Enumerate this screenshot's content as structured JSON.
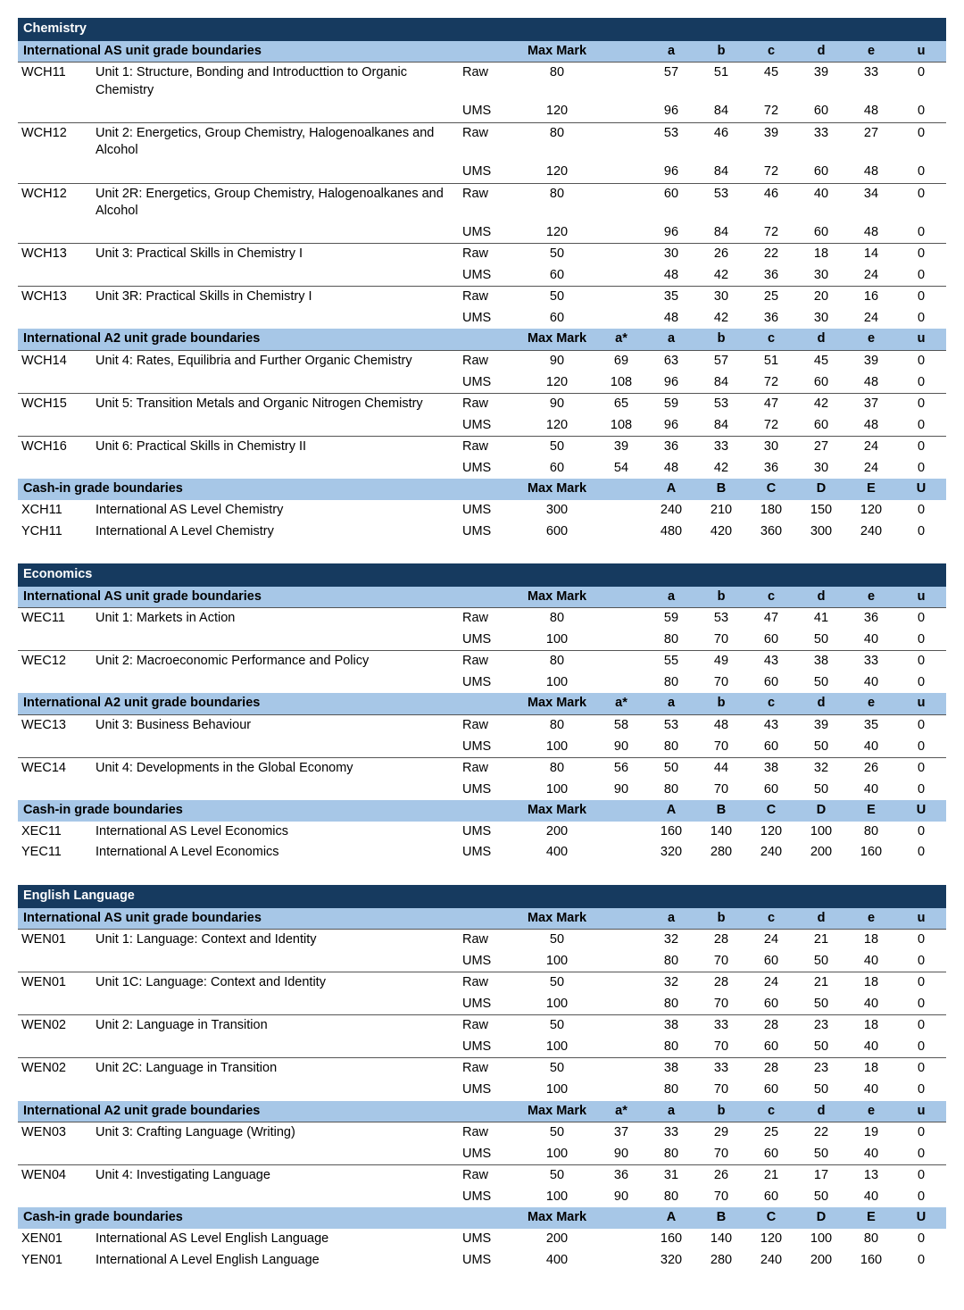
{
  "colors": {
    "subject_bg": "#163a5f",
    "subject_fg": "#ffffff",
    "section_bg": "#a7c7e7",
    "border": "#555555",
    "page_bg": "#ffffff"
  },
  "labels": {
    "max_mark": "Max Mark",
    "row_raw": "Raw",
    "row_ums": "UMS"
  },
  "grade_sets": {
    "as": [
      "",
      "a",
      "b",
      "c",
      "d",
      "e",
      "u"
    ],
    "a2": [
      "a*",
      "a",
      "b",
      "c",
      "d",
      "e",
      "u"
    ],
    "cashin": [
      "",
      "A",
      "B",
      "C",
      "D",
      "E",
      "U"
    ]
  },
  "subjects": [
    {
      "name": "Chemistry",
      "sections": [
        {
          "title": "International AS unit grade boundaries",
          "grade_set": "as",
          "units": [
            {
              "code": "WCH11",
              "title": "Unit 1: Structure, Bonding and Introducttion to Organic Chemistry",
              "rows": [
                {
                  "type": "Raw",
                  "max": 80,
                  "g": [
                    "",
                    57,
                    51,
                    45,
                    39,
                    33,
                    0
                  ]
                },
                {
                  "type": "UMS",
                  "max": 120,
                  "g": [
                    "",
                    96,
                    84,
                    72,
                    60,
                    48,
                    0
                  ]
                }
              ]
            },
            {
              "code": "WCH12",
              "title": "Unit 2: Energetics, Group Chemistry, Halogenoalkanes and Alcohol",
              "rows": [
                {
                  "type": "Raw",
                  "max": 80,
                  "g": [
                    "",
                    53,
                    46,
                    39,
                    33,
                    27,
                    0
                  ]
                },
                {
                  "type": "UMS",
                  "max": 120,
                  "g": [
                    "",
                    96,
                    84,
                    72,
                    60,
                    48,
                    0
                  ]
                }
              ]
            },
            {
              "code": "WCH12",
              "title": "Unit 2R: Energetics, Group Chemistry, Halogenoalkanes and Alcohol",
              "rows": [
                {
                  "type": "Raw",
                  "max": 80,
                  "g": [
                    "",
                    60,
                    53,
                    46,
                    40,
                    34,
                    0
                  ]
                },
                {
                  "type": "UMS",
                  "max": 120,
                  "g": [
                    "",
                    96,
                    84,
                    72,
                    60,
                    48,
                    0
                  ]
                }
              ]
            },
            {
              "code": "WCH13",
              "title": "Unit 3: Practical Skills in Chemistry I",
              "rows": [
                {
                  "type": "Raw",
                  "max": 50,
                  "g": [
                    "",
                    30,
                    26,
                    22,
                    18,
                    14,
                    0
                  ]
                },
                {
                  "type": "UMS",
                  "max": 60,
                  "g": [
                    "",
                    48,
                    42,
                    36,
                    30,
                    24,
                    0
                  ]
                }
              ]
            },
            {
              "code": "WCH13",
              "title": "Unit 3R: Practical Skills in Chemistry I",
              "rows": [
                {
                  "type": "Raw",
                  "max": 50,
                  "g": [
                    "",
                    35,
                    30,
                    25,
                    20,
                    16,
                    0
                  ]
                },
                {
                  "type": "UMS",
                  "max": 60,
                  "g": [
                    "",
                    48,
                    42,
                    36,
                    30,
                    24,
                    0
                  ]
                }
              ]
            }
          ]
        },
        {
          "title": "International A2 unit grade boundaries",
          "grade_set": "a2",
          "units": [
            {
              "code": "WCH14",
              "title": "Unit 4: Rates, Equilibria and Further Organic Chemistry",
              "rows": [
                {
                  "type": "Raw",
                  "max": 90,
                  "g": [
                    69,
                    63,
                    57,
                    51,
                    45,
                    39,
                    0
                  ]
                },
                {
                  "type": "UMS",
                  "max": 120,
                  "g": [
                    108,
                    96,
                    84,
                    72,
                    60,
                    48,
                    0
                  ]
                }
              ]
            },
            {
              "code": "WCH15",
              "title": "Unit 5: Transition Metals and Organic Nitrogen Chemistry",
              "rows": [
                {
                  "type": "Raw",
                  "max": 90,
                  "g": [
                    65,
                    59,
                    53,
                    47,
                    42,
                    37,
                    0
                  ]
                },
                {
                  "type": "UMS",
                  "max": 120,
                  "g": [
                    108,
                    96,
                    84,
                    72,
                    60,
                    48,
                    0
                  ]
                }
              ]
            },
            {
              "code": "WCH16",
              "title": "Unit 6: Practical Skills in Chemistry II",
              "rows": [
                {
                  "type": "Raw",
                  "max": 50,
                  "g": [
                    39,
                    36,
                    33,
                    30,
                    27,
                    24,
                    0
                  ]
                },
                {
                  "type": "UMS",
                  "max": 60,
                  "g": [
                    54,
                    48,
                    42,
                    36,
                    30,
                    24,
                    0
                  ]
                }
              ]
            }
          ]
        },
        {
          "title": "Cash-in grade boundaries",
          "grade_set": "cashin",
          "units": [
            {
              "code": "XCH11",
              "title": "International AS Level Chemistry",
              "notop": true,
              "rows": [
                {
                  "type": "UMS",
                  "max": 300,
                  "g": [
                    "",
                    240,
                    210,
                    180,
                    150,
                    120,
                    0
                  ]
                }
              ]
            },
            {
              "code": "YCH11",
              "title": "International A Level Chemistry",
              "notop": true,
              "rows": [
                {
                  "type": "UMS",
                  "max": 600,
                  "g": [
                    "",
                    480,
                    420,
                    360,
                    300,
                    240,
                    0
                  ]
                }
              ]
            }
          ]
        }
      ]
    },
    {
      "name": "Economics",
      "sections": [
        {
          "title": "International AS unit grade boundaries",
          "grade_set": "as",
          "units": [
            {
              "code": "WEC11",
              "title": "Unit 1: Markets in Action",
              "rows": [
                {
                  "type": "Raw",
                  "max": 80,
                  "g": [
                    "",
                    59,
                    53,
                    47,
                    41,
                    36,
                    0
                  ]
                },
                {
                  "type": "UMS",
                  "max": 100,
                  "g": [
                    "",
                    80,
                    70,
                    60,
                    50,
                    40,
                    0
                  ]
                }
              ]
            },
            {
              "code": "WEC12",
              "title": "Unit 2: Macroeconomic Performance and Policy",
              "rows": [
                {
                  "type": "Raw",
                  "max": 80,
                  "g": [
                    "",
                    55,
                    49,
                    43,
                    38,
                    33,
                    0
                  ]
                },
                {
                  "type": "UMS",
                  "max": 100,
                  "g": [
                    "",
                    80,
                    70,
                    60,
                    50,
                    40,
                    0
                  ]
                }
              ]
            }
          ]
        },
        {
          "title": "International A2 unit grade boundaries",
          "grade_set": "a2",
          "units": [
            {
              "code": "WEC13",
              "title": "Unit 3: Business Behaviour",
              "rows": [
                {
                  "type": "Raw",
                  "max": 80,
                  "g": [
                    58,
                    53,
                    48,
                    43,
                    39,
                    35,
                    0
                  ]
                },
                {
                  "type": "UMS",
                  "max": 100,
                  "g": [
                    90,
                    80,
                    70,
                    60,
                    50,
                    40,
                    0
                  ]
                }
              ]
            },
            {
              "code": "WEC14",
              "title": "Unit 4: Developments in the Global Economy",
              "rows": [
                {
                  "type": "Raw",
                  "max": 80,
                  "g": [
                    56,
                    50,
                    44,
                    38,
                    32,
                    26,
                    0
                  ]
                },
                {
                  "type": "UMS",
                  "max": 100,
                  "g": [
                    90,
                    80,
                    70,
                    60,
                    50,
                    40,
                    0
                  ]
                }
              ]
            }
          ]
        },
        {
          "title": "Cash-in grade boundaries",
          "grade_set": "cashin",
          "units": [
            {
              "code": "XEC11",
              "title": "International AS Level Economics",
              "notop": true,
              "rows": [
                {
                  "type": "UMS",
                  "max": 200,
                  "g": [
                    "",
                    160,
                    140,
                    120,
                    100,
                    80,
                    0
                  ]
                }
              ]
            },
            {
              "code": "YEC11",
              "title": "International A Level Economics",
              "notop": true,
              "rows": [
                {
                  "type": "UMS",
                  "max": 400,
                  "g": [
                    "",
                    320,
                    280,
                    240,
                    200,
                    160,
                    0
                  ]
                }
              ]
            }
          ]
        }
      ]
    },
    {
      "name": "English Language",
      "sections": [
        {
          "title": "International AS unit grade boundaries",
          "grade_set": "as",
          "units": [
            {
              "code": "WEN01",
              "title": "Unit 1: Language: Context and Identity",
              "rows": [
                {
                  "type": "Raw",
                  "max": 50,
                  "g": [
                    "",
                    32,
                    28,
                    24,
                    21,
                    18,
                    0
                  ]
                },
                {
                  "type": "UMS",
                  "max": 100,
                  "g": [
                    "",
                    80,
                    70,
                    60,
                    50,
                    40,
                    0
                  ]
                }
              ]
            },
            {
              "code": "WEN01",
              "title": "Unit 1C: Language: Context and Identity",
              "rows": [
                {
                  "type": "Raw",
                  "max": 50,
                  "g": [
                    "",
                    32,
                    28,
                    24,
                    21,
                    18,
                    0
                  ]
                },
                {
                  "type": "UMS",
                  "max": 100,
                  "g": [
                    "",
                    80,
                    70,
                    60,
                    50,
                    40,
                    0
                  ]
                }
              ]
            },
            {
              "code": "WEN02",
              "title": "Unit 2: Language in Transition",
              "rows": [
                {
                  "type": "Raw",
                  "max": 50,
                  "g": [
                    "",
                    38,
                    33,
                    28,
                    23,
                    18,
                    0
                  ]
                },
                {
                  "type": "UMS",
                  "max": 100,
                  "g": [
                    "",
                    80,
                    70,
                    60,
                    50,
                    40,
                    0
                  ]
                }
              ]
            },
            {
              "code": "WEN02",
              "title": "Unit 2C: Language in Transition",
              "rows": [
                {
                  "type": "Raw",
                  "max": 50,
                  "g": [
                    "",
                    38,
                    33,
                    28,
                    23,
                    18,
                    0
                  ]
                },
                {
                  "type": "UMS",
                  "max": 100,
                  "g": [
                    "",
                    80,
                    70,
                    60,
                    50,
                    40,
                    0
                  ]
                }
              ]
            }
          ]
        },
        {
          "title": "International A2 unit grade boundaries",
          "grade_set": "a2",
          "units": [
            {
              "code": "WEN03",
              "title": "Unit 3: Crafting Language (Writing)",
              "rows": [
                {
                  "type": "Raw",
                  "max": 50,
                  "g": [
                    37,
                    33,
                    29,
                    25,
                    22,
                    19,
                    0
                  ]
                },
                {
                  "type": "UMS",
                  "max": 100,
                  "g": [
                    90,
                    80,
                    70,
                    60,
                    50,
                    40,
                    0
                  ]
                }
              ]
            },
            {
              "code": "WEN04",
              "title": "Unit 4: Investigating Language",
              "rows": [
                {
                  "type": "Raw",
                  "max": 50,
                  "g": [
                    36,
                    31,
                    26,
                    21,
                    17,
                    13,
                    0
                  ]
                },
                {
                  "type": "UMS",
                  "max": 100,
                  "g": [
                    90,
                    80,
                    70,
                    60,
                    50,
                    40,
                    0
                  ]
                }
              ]
            }
          ]
        },
        {
          "title": "Cash-in grade boundaries",
          "grade_set": "cashin",
          "units": [
            {
              "code": "XEN01",
              "title": "International AS Level English Language",
              "notop": true,
              "rows": [
                {
                  "type": "UMS",
                  "max": 200,
                  "g": [
                    "",
                    160,
                    140,
                    120,
                    100,
                    80,
                    0
                  ]
                }
              ]
            },
            {
              "code": "YEN01",
              "title": "International A Level English Language",
              "notop": true,
              "rows": [
                {
                  "type": "UMS",
                  "max": 400,
                  "g": [
                    "",
                    320,
                    280,
                    240,
                    200,
                    160,
                    0
                  ]
                }
              ]
            }
          ]
        }
      ]
    }
  ]
}
